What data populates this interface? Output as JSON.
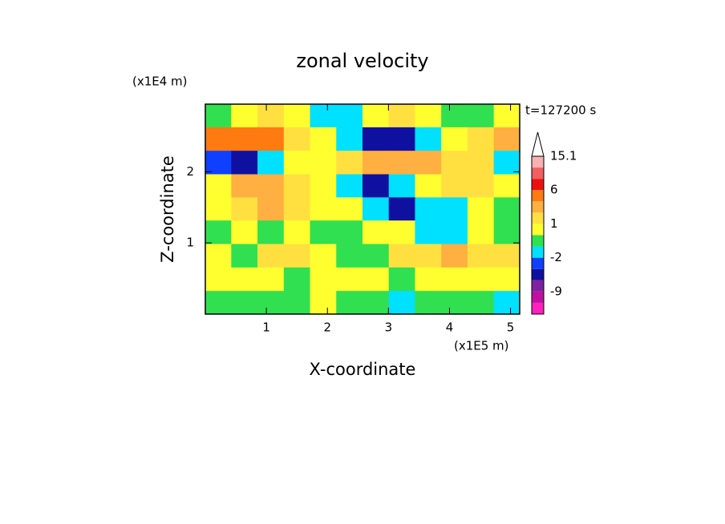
{
  "chart_data": {
    "type": "contour",
    "title": "zonal velocity",
    "time_label": "t=127200 s",
    "x_label": "X-coordinate",
    "y_label": "Z-coordinate",
    "x_unit": "(x1E5 m)",
    "y_unit": "(x1E4 m)",
    "xlim": [
      0,
      5.15
    ],
    "ylim": [
      0,
      2.95
    ],
    "xticks": [
      1,
      2,
      3,
      4,
      5
    ],
    "yticks": [
      1,
      2
    ],
    "x": [
      0.21,
      0.64,
      1.07,
      1.5,
      1.93,
      2.36,
      2.79,
      3.22,
      3.65,
      4.08,
      4.51,
      4.94
    ],
    "y": [
      2.79,
      2.46,
      2.13,
      1.8,
      1.48,
      1.15,
      0.82,
      0.49,
      0.16
    ],
    "values": [
      [
        0,
        0.5,
        1.5,
        1,
        -1,
        -1.5,
        0.5,
        1.5,
        0.5,
        0,
        -0.5,
        0.5
      ],
      [
        4,
        5,
        4,
        1.5,
        0.5,
        -1,
        -4,
        -5,
        -1,
        0.5,
        1.5,
        3
      ],
      [
        -2,
        -5,
        -1,
        0.5,
        0.5,
        1.5,
        2.5,
        3,
        3,
        2,
        1.5,
        -1
      ],
      [
        1,
        2.5,
        3,
        1.5,
        0.5,
        -1,
        -4,
        -1.5,
        1,
        1.5,
        2,
        1
      ],
      [
        0.5,
        2,
        2.5,
        1.5,
        1,
        0.5,
        -1,
        -4,
        -1,
        -1.5,
        0.5,
        0
      ],
      [
        0,
        0.5,
        -0.5,
        0.5,
        0,
        -0.5,
        0.5,
        0.5,
        -1.5,
        -1,
        1,
        0
      ],
      [
        0.5,
        -0.5,
        1.5,
        1.5,
        0.5,
        0,
        -0.5,
        1.5,
        2,
        2.5,
        2,
        1.5
      ],
      [
        0.5,
        1,
        0.5,
        -0.5,
        0.5,
        0.5,
        1,
        -0.5,
        0.5,
        1,
        0.5,
        0.5
      ],
      [
        -0.5,
        0,
        -0.5,
        0,
        0.5,
        -0.5,
        0,
        -1.5,
        -0.5,
        0,
        -0.5,
        -1
      ]
    ],
    "levels": [
      -16,
      -12.5,
      -9,
      -6,
      -3,
      -2,
      -1,
      0,
      1,
      2,
      3,
      6,
      9,
      12,
      15.1
    ],
    "colors": [
      "#ff20c0",
      "#c010a0",
      "#8020a0",
      "#1010a0",
      "#1040ff",
      "#00e0ff",
      "#30e050",
      "#ffff30",
      "#ffe040",
      "#ffb040",
      "#ff7a10",
      "#ee1010",
      "#f06060",
      "#f8b0b0"
    ],
    "colorbar_ticks": [
      -9,
      -2,
      1,
      6,
      15.1
    ]
  }
}
